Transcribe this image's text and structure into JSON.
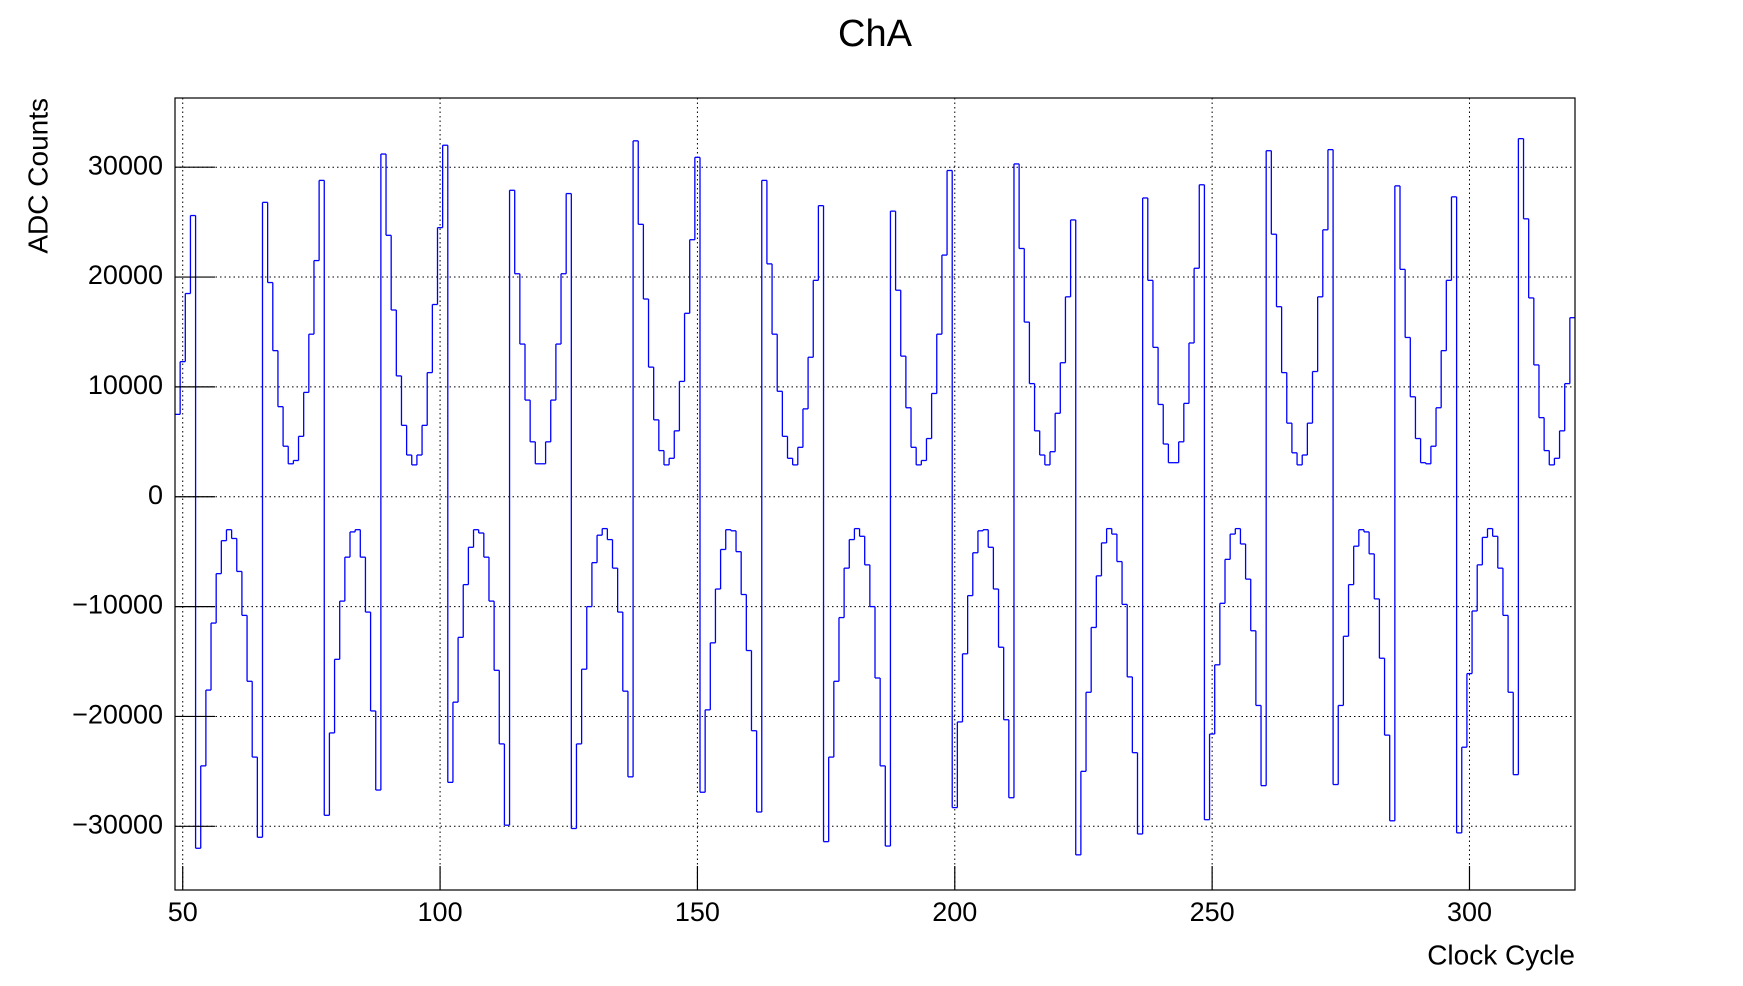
{
  "chart_data": {
    "type": "histogram",
    "title": "ChA",
    "xlabel": "Clock Cycle",
    "ylabel": "ADC Counts",
    "color": "#0000ff",
    "grid": true,
    "xlim": [
      48.5,
      320.5
    ],
    "xticks": [
      50,
      100,
      150,
      200,
      250,
      300
    ],
    "ylim": [
      -35800,
      36300
    ],
    "yticks": [
      {
        "value": -30000,
        "label": "−30000"
      },
      {
        "value": -20000,
        "label": "−20000"
      },
      {
        "value": -10000,
        "label": "−10000"
      },
      0,
      10000,
      20000,
      30000
    ],
    "bins": [
      48.5,
      49.5,
      50.5,
      51.5,
      52.5,
      53.5,
      54.5,
      55.5,
      56.5,
      57.5,
      58.5,
      59.5,
      60.5,
      61.5,
      62.5,
      63.5,
      64.5,
      65.5,
      66.5,
      67.5,
      68.5,
      69.5,
      70.5,
      71.5,
      72.5,
      73.5,
      74.5,
      75.5,
      76.5,
      77.5,
      78.5,
      79.5,
      80.5,
      81.5,
      82.5,
      83.5,
      84.5,
      85.5,
      86.5,
      87.5,
      88.5,
      89.5,
      90.5,
      91.5,
      92.5,
      93.5,
      94.5,
      95.5,
      96.5,
      97.5,
      98.5,
      99.5,
      100.5,
      101.5,
      102.5,
      103.5,
      104.5,
      105.5,
      106.5,
      107.5,
      108.5,
      109.5,
      110.5,
      111.5,
      112.5,
      113.5,
      114.5,
      115.5,
      116.5,
      117.5,
      118.5,
      119.5,
      120.5,
      121.5,
      122.5,
      123.5,
      124.5,
      125.5,
      126.5,
      127.5,
      128.5,
      129.5,
      130.5,
      131.5,
      132.5,
      133.5,
      134.5,
      135.5,
      136.5,
      137.5,
      138.5,
      139.5,
      140.5,
      141.5,
      142.5,
      143.5,
      144.5,
      145.5,
      146.5,
      147.5,
      148.5,
      149.5,
      150.5,
      151.5,
      152.5,
      153.5,
      154.5,
      155.5,
      156.5,
      157.5,
      158.5,
      159.5,
      160.5,
      161.5,
      162.5,
      163.5,
      164.5,
      165.5,
      166.5,
      167.5,
      168.5,
      169.5,
      170.5,
      171.5,
      172.5,
      173.5,
      174.5,
      175.5,
      176.5,
      177.5,
      178.5,
      179.5,
      180.5,
      181.5,
      182.5,
      183.5,
      184.5,
      185.5,
      186.5,
      187.5,
      188.5,
      189.5,
      190.5,
      191.5,
      192.5,
      193.5,
      194.5,
      195.5,
      196.5,
      197.5,
      198.5,
      199.5,
      200.5,
      201.5,
      202.5,
      203.5,
      204.5,
      205.5,
      206.5,
      207.5,
      208.5,
      209.5,
      210.5,
      211.5,
      212.5,
      213.5,
      214.5,
      215.5,
      216.5,
      217.5,
      218.5,
      219.5,
      220.5,
      221.5,
      222.5,
      223.5,
      224.5,
      225.5,
      226.5,
      227.5,
      228.5,
      229.5,
      230.5,
      231.5,
      232.5,
      233.5,
      234.5,
      235.5,
      236.5,
      237.5,
      238.5,
      239.5,
      240.5,
      241.5,
      242.5,
      243.5,
      244.5,
      245.5,
      246.5,
      247.5,
      248.5,
      249.5,
      250.5,
      251.5,
      252.5,
      253.5,
      254.5,
      255.5,
      256.5,
      257.5,
      258.5,
      259.5,
      260.5,
      261.5,
      262.5,
      263.5,
      264.5,
      265.5,
      266.5,
      267.5,
      268.5,
      269.5,
      270.5,
      271.5,
      272.5,
      273.5,
      274.5,
      275.5,
      276.5,
      277.5,
      278.5,
      279.5,
      280.5,
      281.5,
      282.5,
      283.5,
      284.5,
      285.5,
      286.5,
      287.5,
      288.5,
      289.5,
      290.5,
      291.5,
      292.5,
      293.5,
      294.5,
      295.5,
      296.5,
      297.5,
      298.5,
      299.5,
      300.5,
      301.5,
      302.5,
      303.5,
      304.5,
      305.5,
      306.5,
      307.5,
      308.5,
      309.5,
      310.5,
      311.5,
      312.5,
      313.5,
      314.5,
      315.5,
      316.5,
      317.5,
      318.5,
      319.5,
      320.5
    ],
    "values": [
      7500,
      12300,
      18500,
      25600,
      -32000,
      -24500,
      -17600,
      -11500,
      -7000,
      -4000,
      -3000,
      -3800,
      -6800,
      -10800,
      -16800,
      -23700,
      -31000,
      26800,
      19500,
      13300,
      8200,
      4600,
      3000,
      3300,
      5500,
      9500,
      14800,
      21500,
      28800,
      -29000,
      -21500,
      -14800,
      -9500,
      -5500,
      -3200,
      -3000,
      -5500,
      -10500,
      -19500,
      -26700,
      31200,
      23800,
      17000,
      11000,
      6500,
      3800,
      2900,
      3800,
      6500,
      11300,
      17500,
      24500,
      32000,
      -26000,
      -18700,
      -12800,
      -8000,
      -4600,
      -3000,
      -3300,
      -5500,
      -9500,
      -15800,
      -22500,
      -29900,
      27900,
      20300,
      13900,
      8800,
      5000,
      3000,
      3000,
      5000,
      8800,
      13900,
      20300,
      27600,
      -30200,
      -22500,
      -15700,
      -10000,
      -6000,
      -3500,
      -2900,
      -3900,
      -6500,
      -10500,
      -17700,
      -25500,
      32400,
      24800,
      18000,
      11800,
      7000,
      4200,
      2900,
      3500,
      6000,
      10500,
      16700,
      23400,
      30900,
      -26900,
      -19400,
      -13300,
      -8400,
      -4800,
      -3000,
      -3100,
      -5000,
      -8900,
      -14000,
      -21300,
      -28700,
      28800,
      21200,
      14800,
      9600,
      5500,
      3500,
      2900,
      4500,
      8000,
      12700,
      19700,
      26500,
      -31400,
      -23700,
      -16800,
      -11000,
      -6500,
      -3900,
      -2900,
      -3600,
      -6200,
      -10000,
      -16500,
      -24500,
      -31800,
      26000,
      18800,
      12800,
      8100,
      4500,
      2900,
      3300,
      5300,
      9400,
      14800,
      22000,
      29700,
      -28300,
      -20500,
      -14300,
      -9000,
      -5100,
      -3100,
      -3000,
      -4600,
      -8400,
      -13700,
      -20300,
      -27400,
      30300,
      22600,
      15900,
      10300,
      6000,
      3800,
      2900,
      4100,
      7600,
      12200,
      18200,
      25200,
      -32600,
      -25000,
      -17800,
      -11900,
      -7200,
      -4200,
      -2900,
      -3400,
      -5900,
      -9800,
      -16400,
      -23300,
      -30700,
      27200,
      19700,
      13600,
      8400,
      4800,
      3100,
      3100,
      5000,
      8500,
      14000,
      20800,
      28400,
      -29400,
      -21600,
      -15300,
      -9700,
      -5700,
      -3400,
      -2900,
      -4300,
      -7500,
      -12200,
      -19000,
      -26300,
      31500,
      23900,
      17300,
      11300,
      6700,
      4000,
      2900,
      3800,
      6700,
      11400,
      18200,
      24300,
      31600,
      -26200,
      -19000,
      -12700,
      -8000,
      -4500,
      -3000,
      -3200,
      -5200,
      -9300,
      -14700,
      -21700,
      -29500,
      28300,
      20700,
      14500,
      9100,
      5300,
      3100,
      3000,
      4600,
      8100,
      13300,
      19700,
      27300,
      -30600,
      -22800,
      -16100,
      -10400,
      -6200,
      -3700,
      -2900,
      -3600,
      -6500,
      -10800,
      -17800,
      -25300,
      32600,
      25300,
      18100,
      12000,
      7200,
      4200,
      2900,
      3500,
      6000,
      10300,
      16300
    ]
  }
}
